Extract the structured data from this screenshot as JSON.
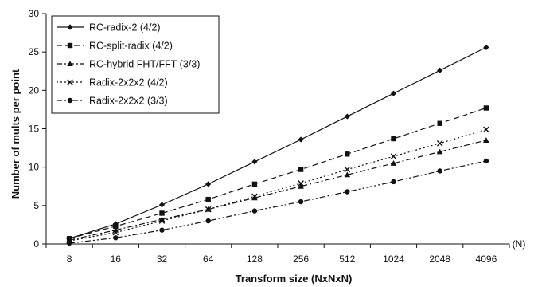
{
  "chart_data": {
    "type": "line",
    "title": "",
    "xlabel": "Transform size (NxNxN)",
    "ylabel": "Number of mults per point",
    "x_unit_label": "(N)",
    "categories": [
      "8",
      "16",
      "32",
      "64",
      "128",
      "256",
      "512",
      "1024",
      "2048",
      "4096"
    ],
    "ylim": [
      0,
      30
    ],
    "yticks": [
      "0",
      "5",
      "10",
      "15",
      "20",
      "25",
      "30"
    ],
    "grid": false,
    "legend_position": "top-left",
    "series": [
      {
        "name": "RC-radix-2 (4/2)",
        "marker": "diamond",
        "dash": "solid",
        "values": [
          0.7,
          2.6,
          5.1,
          7.8,
          10.7,
          13.6,
          16.6,
          19.6,
          22.6,
          25.6
        ]
      },
      {
        "name": "RC-split-radix (4/2)",
        "marker": "square",
        "dash": "long-dash",
        "values": [
          0.7,
          2.3,
          4.0,
          5.8,
          7.8,
          9.7,
          11.7,
          13.7,
          15.7,
          17.7
        ]
      },
      {
        "name": "RC-hybrid FHT/FFT (3/3)",
        "marker": "triangle",
        "dash": "dash-dot",
        "values": [
          0.5,
          1.8,
          3.2,
          4.5,
          6.0,
          7.5,
          9.0,
          10.5,
          12.0,
          13.5
        ]
      },
      {
        "name": "Radix-2x2x2 (4/2)",
        "marker": "x",
        "dash": "dotted",
        "values": [
          0.4,
          1.5,
          3.0,
          4.5,
          6.2,
          7.9,
          9.7,
          11.4,
          13.1,
          14.9
        ]
      },
      {
        "name": "Radix-2x2x2 (3/3)",
        "marker": "circle",
        "dash": "dash-dot-dot",
        "values": [
          0.1,
          0.8,
          1.8,
          3.0,
          4.3,
          5.5,
          6.8,
          8.1,
          9.5,
          10.8
        ]
      }
    ]
  }
}
